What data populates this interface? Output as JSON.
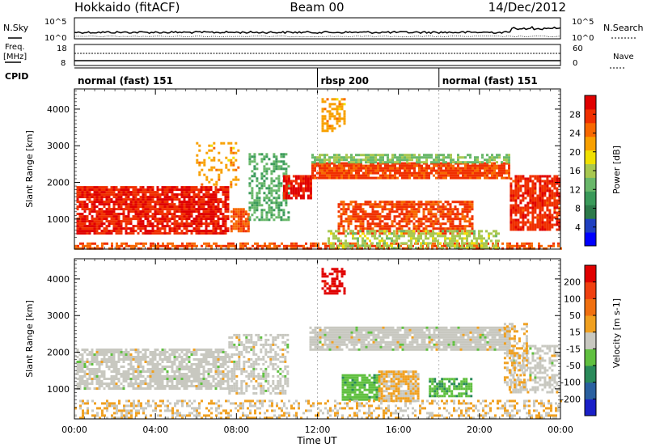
{
  "header": {
    "station": "Hokkaido (fitACF)",
    "beam": "Beam 00",
    "date": "14/Dec/2012"
  },
  "side_labels": {
    "nsky": "N.Sky",
    "nsearch": "N.Search",
    "freq_line1": "Freq.",
    "freq_line2": "[MHz]",
    "nave": "Nave",
    "cpid": "CPID"
  },
  "noise_panel": {
    "left_ticks": [
      "10^5",
      "10^0"
    ],
    "right_ticks": [
      "10^5",
      "10^0"
    ]
  },
  "freq_panel": {
    "left_ticks": [
      "18",
      "8"
    ],
    "right_ticks": [
      "60",
      "0"
    ]
  },
  "cpid_modes": [
    {
      "label": "normal (fast) 151",
      "start_hour": 0,
      "end_hour": 12
    },
    {
      "label": "rbsp 200",
      "start_hour": 12,
      "end_hour": 18
    },
    {
      "label": "normal (fast) 151",
      "start_hour": 18,
      "end_hour": 24
    }
  ],
  "power_colorbar": {
    "label": "Power [dB]",
    "ticks": [
      "28",
      "24",
      "20",
      "16",
      "12",
      "8",
      "4"
    ],
    "colors": [
      "#0000ff",
      "#2040c0",
      "#2d7a4a",
      "#3a9a5a",
      "#69b86a",
      "#a8c850",
      "#f0e000",
      "#f8a000",
      "#f86800",
      "#f03000",
      "#e00000"
    ]
  },
  "velocity_colorbar": {
    "label": "Velocity [m s-1]",
    "ticks": [
      "200",
      "100",
      "50",
      "15",
      "-15",
      "-50",
      "-100",
      "-200"
    ],
    "colors": [
      "#1a20c8",
      "#2a60a0",
      "#2a8a5a",
      "#60c040",
      "#c8c8c0",
      "#f0a020",
      "#f07010",
      "#f04010",
      "#e00000"
    ]
  },
  "x_axis": {
    "label": "Time UT",
    "ticks": [
      "00:00",
      "04:00",
      "08:00",
      "12:00",
      "16:00",
      "20:00",
      "00:00"
    ]
  },
  "y_axis": {
    "label": "Slant Range [km]",
    "ticks": [
      "4000",
      "3000",
      "2000",
      "1000"
    ]
  },
  "chart_data": [
    {
      "type": "heatmap",
      "quantity": "power",
      "ylabel": "Slant Range [km]",
      "xlabel": "Time UT",
      "xlim_hours": [
        0,
        24
      ],
      "ylim_km": [
        180,
        4550
      ],
      "zlabel": "Power [dB]",
      "zlim": [
        0,
        32
      ],
      "regions": [
        {
          "t0": 0.1,
          "t1": 7.6,
          "r0": 600,
          "r1": 1900,
          "value": 29,
          "fill": 0.85
        },
        {
          "t0": 6.0,
          "t1": 8.1,
          "r0": 1900,
          "r1": 3100,
          "value": 22,
          "fill": 0.25
        },
        {
          "t0": 7.7,
          "t1": 8.6,
          "r0": 700,
          "r1": 1300,
          "value": 26,
          "fill": 0.8
        },
        {
          "t0": 8.6,
          "t1": 10.6,
          "r0": 1000,
          "r1": 2800,
          "value": 12,
          "fill": 0.5
        },
        {
          "t0": 10.3,
          "t1": 11.7,
          "r0": 1600,
          "r1": 2200,
          "value": 30,
          "fill": 0.85
        },
        {
          "t0": 11.7,
          "t1": 21.5,
          "r0": 2100,
          "r1": 2550,
          "value": 27,
          "fill": 0.9
        },
        {
          "t0": 11.7,
          "t1": 21.5,
          "r0": 2550,
          "r1": 2780,
          "value": 14,
          "fill": 0.7
        },
        {
          "t0": 13.0,
          "t1": 19.6,
          "r0": 600,
          "r1": 1500,
          "value": 27,
          "fill": 0.7
        },
        {
          "t0": 12.2,
          "t1": 13.3,
          "r0": 3400,
          "r1": 4300,
          "value": 22,
          "fill": 0.55
        },
        {
          "t0": 21.5,
          "t1": 23.95,
          "r0": 700,
          "r1": 2200,
          "value": 28,
          "fill": 0.8
        },
        {
          "t0": 0.0,
          "t1": 24.0,
          "r0": 200,
          "r1": 360,
          "value": 26,
          "fill": 0.6
        },
        {
          "t0": 12.5,
          "t1": 21.0,
          "r0": 200,
          "r1": 700,
          "value": 16,
          "fill": 0.55
        }
      ]
    },
    {
      "type": "heatmap",
      "quantity": "velocity",
      "ylabel": "Slant Range [km]",
      "xlabel": "Time UT",
      "xlim_hours": [
        0,
        24
      ],
      "ylim_km": [
        180,
        4550
      ],
      "zlabel": "Velocity [m s-1]",
      "zlim": [
        -250,
        250
      ],
      "regions": [
        {
          "t0": 0.1,
          "t1": 7.6,
          "r0": 1000,
          "r1": 2100,
          "value": 0,
          "fill": 0.75
        },
        {
          "t0": 7.6,
          "t1": 10.5,
          "r0": 900,
          "r1": 2500,
          "value": 0,
          "fill": 0.55
        },
        {
          "t0": 11.6,
          "t1": 21.5,
          "r0": 2100,
          "r1": 2700,
          "value": 0,
          "fill": 0.9
        },
        {
          "t0": 13.2,
          "t1": 15.0,
          "r0": 700,
          "r1": 1400,
          "value": -60,
          "fill": 0.85
        },
        {
          "t0": 15.0,
          "t1": 17.0,
          "r0": 700,
          "r1": 1500,
          "value": 35,
          "fill": 0.9
        },
        {
          "t0": 17.5,
          "t1": 19.6,
          "r0": 800,
          "r1": 1300,
          "value": -70,
          "fill": 0.75
        },
        {
          "t0": 12.2,
          "t1": 13.3,
          "r0": 3600,
          "r1": 4300,
          "value": 220,
          "fill": 0.55
        },
        {
          "t0": 21.5,
          "t1": 23.9,
          "r0": 900,
          "r1": 2200,
          "value": 0,
          "fill": 0.5
        },
        {
          "t0": 21.2,
          "t1": 22.3,
          "r0": 1000,
          "r1": 2800,
          "value": 35,
          "fill": 0.35
        },
        {
          "t0": 0.0,
          "t1": 24.0,
          "r0": 200,
          "r1": 700,
          "value": 30,
          "fill": 0.4
        }
      ]
    }
  ]
}
